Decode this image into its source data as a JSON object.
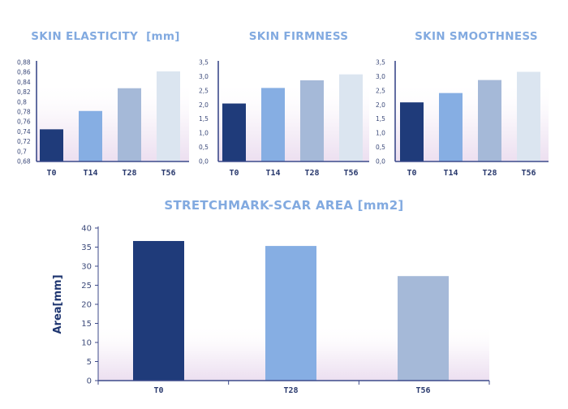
{
  "colors": {
    "title": "#82aae0",
    "axis": "#3c4a8a",
    "bars": [
      "#1f3b7a",
      "#86aee3",
      "#a5b9d8",
      "#dbe5f0"
    ],
    "bg_gradient_bottom": "#ecdff0"
  },
  "chart_data": [
    {
      "id": "skin-elasticity",
      "type": "bar",
      "title": "SKIN ELASTICITY  [mm]",
      "categories": [
        "T0",
        "T14",
        "T28",
        "T56"
      ],
      "values": [
        0.745,
        0.782,
        0.828,
        0.862
      ],
      "ylim": [
        0.68,
        0.88
      ],
      "yticks": [
        0.68,
        0.7,
        0.72,
        0.74,
        0.76,
        0.78,
        0.8,
        0.82,
        0.84,
        0.86,
        0.88
      ],
      "ytick_labels": [
        "0,68",
        "0,7",
        "0,72",
        "0,74",
        "0,76",
        "0,78",
        "0,8",
        "0,82",
        "0,84",
        "0,86",
        "0,88"
      ],
      "xlabel": "",
      "ylabel": "",
      "grid": false,
      "legend": "none"
    },
    {
      "id": "skin-firmness",
      "type": "bar",
      "title": "SKIN FIRMNESS",
      "categories": [
        "T0",
        "T14",
        "T28",
        "T56"
      ],
      "values": [
        2.05,
        2.6,
        2.87,
        3.08
      ],
      "ylim": [
        0,
        3.5
      ],
      "yticks": [
        0,
        0.5,
        1.0,
        1.5,
        2.0,
        2.5,
        3.0,
        3.5
      ],
      "ytick_labels": [
        "0,0",
        "0,5",
        "1,0",
        "1,5",
        "2,0",
        "2,5",
        "3,0",
        "3,5"
      ],
      "xlabel": "",
      "ylabel": "",
      "grid": false,
      "legend": "none"
    },
    {
      "id": "skin-smoothness",
      "type": "bar",
      "title": "SKIN SMOOTHNESS",
      "categories": [
        "T0",
        "T14",
        "T28",
        "T56"
      ],
      "values": [
        2.09,
        2.42,
        2.88,
        3.17
      ],
      "ylim": [
        0,
        3.5
      ],
      "yticks": [
        0,
        0.5,
        1.0,
        1.5,
        2.0,
        2.5,
        3.0,
        3.5
      ],
      "ytick_labels": [
        "0,0",
        "0,5",
        "1,0",
        "1,5",
        "2,0",
        "2,5",
        "3,0",
        "3,5"
      ],
      "xlabel": "",
      "ylabel": "",
      "grid": false,
      "legend": "none"
    },
    {
      "id": "stretchmark-scar-area",
      "type": "bar",
      "title": "STRETCHMARK-SCAR AREA [mm2]",
      "categories": [
        "T0",
        "T28",
        "T56"
      ],
      "values": [
        36.6,
        35.3,
        27.4
      ],
      "ylim": [
        0,
        40
      ],
      "yticks": [
        0,
        5,
        10,
        15,
        20,
        25,
        30,
        35,
        40
      ],
      "ytick_labels": [
        "0",
        "5",
        "10",
        "15",
        "20",
        "25",
        "30",
        "35",
        "40"
      ],
      "xlabel": "",
      "ylabel": "Area[mm]",
      "grid": false,
      "legend": "none"
    }
  ]
}
